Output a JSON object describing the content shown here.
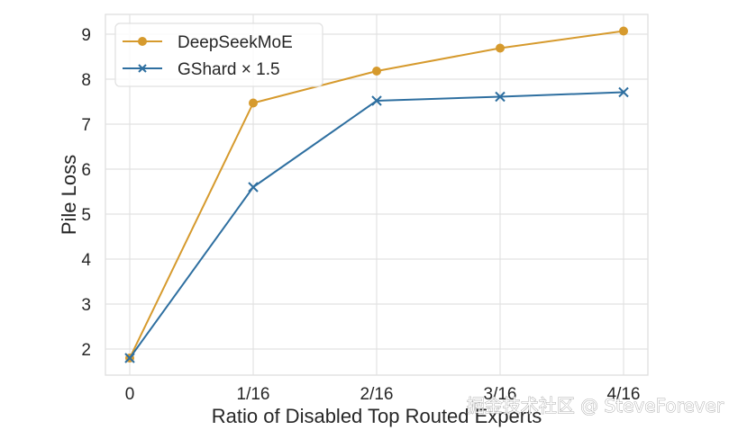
{
  "chart_data": {
    "type": "line",
    "title": "",
    "xlabel": "Ratio of Disabled Top Routed Experts",
    "ylabel": "Pile Loss",
    "categories": [
      "0",
      "1/16",
      "2/16",
      "3/16",
      "4/16"
    ],
    "yticks": [
      2,
      3,
      4,
      5,
      6,
      7,
      8,
      9
    ],
    "ylim": [
      1.42,
      9.44
    ],
    "grid": true,
    "legend_position": "top-left",
    "series": [
      {
        "name": "DeepSeekMoE",
        "color": "#D69A2D",
        "marker": "circle",
        "values": [
          1.8,
          7.47,
          8.18,
          8.69,
          9.07
        ]
      },
      {
        "name": "GShard × 1.5",
        "color": "#2E6FA0",
        "marker": "x",
        "values": [
          1.8,
          5.6,
          7.52,
          7.61,
          7.71
        ]
      }
    ]
  },
  "watermark": "掘金技术社区 @ SteveForever"
}
